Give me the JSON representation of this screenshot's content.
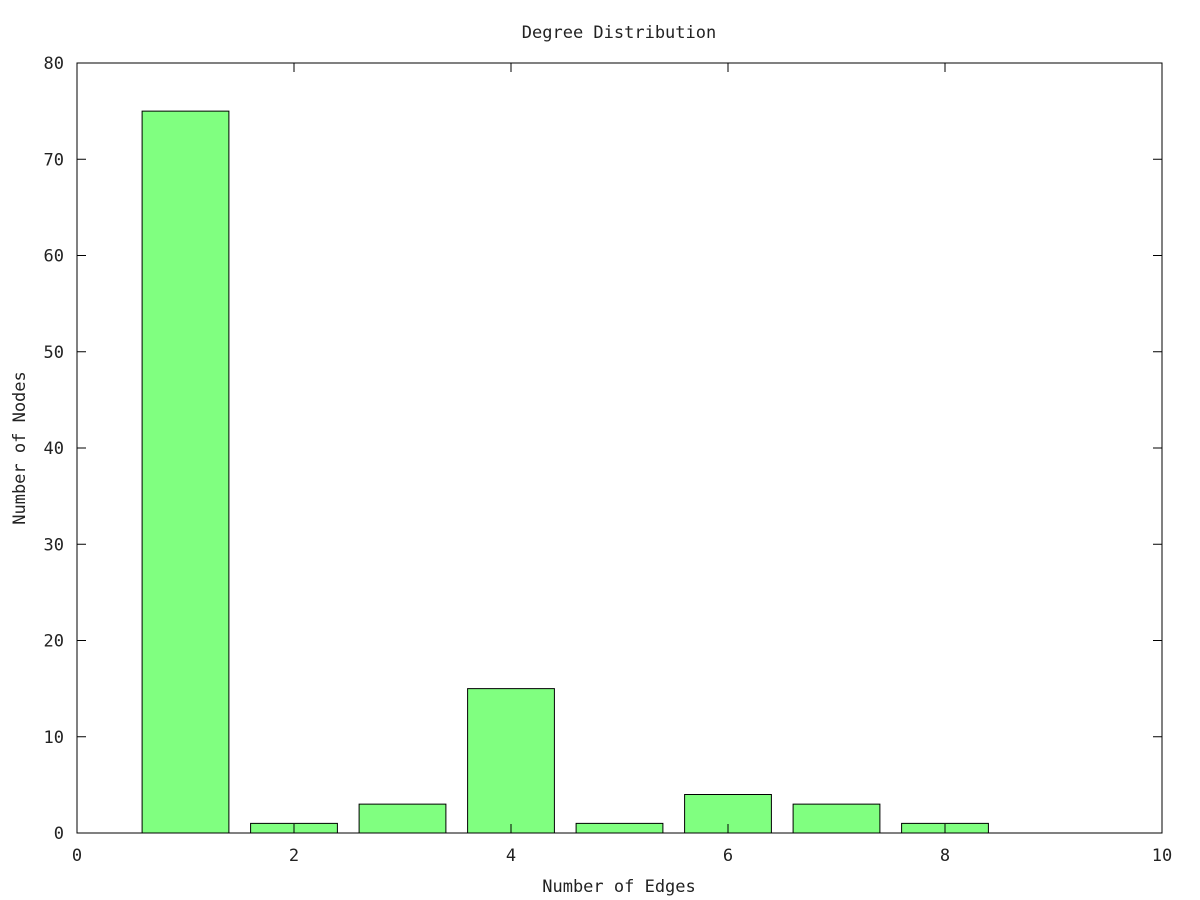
{
  "chart_data": {
    "type": "bar",
    "title": "Degree Distribution",
    "xlabel": "Number of Edges",
    "ylabel": "Number of Nodes",
    "x": [
      1,
      2,
      3,
      4,
      5,
      6,
      7,
      8
    ],
    "values": [
      75,
      1,
      3,
      15,
      1,
      4,
      3,
      1
    ],
    "bar_width": 0.8,
    "xlim": [
      0,
      10
    ],
    "ylim": [
      0,
      80
    ],
    "xticks": [
      0,
      2,
      4,
      6,
      8,
      10
    ],
    "yticks": [
      0,
      10,
      20,
      30,
      40,
      50,
      60,
      70,
      80
    ],
    "grid": false,
    "legend": "none",
    "bar_color": "#80ff80",
    "bar_edge_color": "#000000"
  }
}
